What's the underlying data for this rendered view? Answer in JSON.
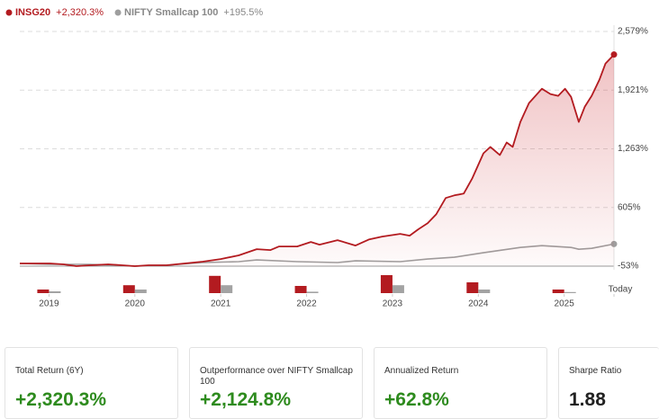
{
  "chart_data": {
    "type": "line",
    "xlim": [
      2018.66,
      2025.58
    ],
    "xticks": [
      2019,
      2020,
      2021,
      2022,
      2023,
      2024,
      2025,
      {
        "value": 2025.58,
        "label": "Today"
      }
    ],
    "ylim": [
      -53,
      2579
    ],
    "yticks": [
      {
        "value": -53,
        "label": "-53%"
      },
      {
        "value": 605,
        "label": "605%"
      },
      {
        "value": 1263,
        "label": "1,263%"
      },
      {
        "value": 1921,
        "label": "1,921%"
      },
      {
        "value": 2579,
        "label": "2,579%"
      }
    ],
    "grid": true,
    "series": [
      {
        "name": "INSG20",
        "legend_value": "+2,320.3%",
        "color": "#b31b20",
        "x": [
          2018.66,
          2018.85,
          2019.01,
          2019.17,
          2019.32,
          2019.48,
          2019.69,
          2019.85,
          2020.0,
          2020.16,
          2020.37,
          2020.58,
          2020.79,
          2021.0,
          2021.21,
          2021.42,
          2021.58,
          2021.68,
          2021.89,
          2022.05,
          2022.15,
          2022.36,
          2022.57,
          2022.73,
          2022.88,
          2023.09,
          2023.2,
          2023.3,
          2023.41,
          2023.51,
          2023.62,
          2023.72,
          2023.83,
          2023.93,
          2024.06,
          2024.14,
          2024.25,
          2024.33,
          2024.4,
          2024.49,
          2024.59,
          2024.74,
          2024.84,
          2024.93,
          2025.01,
          2025.08,
          2025.17,
          2025.24,
          2025.32,
          2025.41,
          2025.48,
          2025.58
        ],
        "values": [
          -23,
          -23,
          -23,
          -33,
          -53,
          -43,
          -33,
          -43,
          -53,
          -43,
          -43,
          -23,
          -3,
          27,
          68,
          138,
          128,
          168,
          168,
          218,
          188,
          238,
          178,
          248,
          279,
          309,
          289,
          359,
          429,
          530,
          711,
          741,
          761,
          932,
          1213,
          1284,
          1193,
          1334,
          1284,
          1565,
          1776,
          1937,
          1877,
          1857,
          1937,
          1846,
          1565,
          1736,
          1857,
          2037,
          2218,
          2320
        ],
        "annual": [
          10,
          22,
          48,
          20,
          50,
          30,
          10
        ]
      },
      {
        "name": "NIFTY Smallcap 100",
        "legend_value": "+195.5%",
        "color": "#9e9e9e",
        "x": [
          2018.66,
          2019.01,
          2019.48,
          2020.0,
          2020.37,
          2020.79,
          2021.21,
          2021.42,
          2021.89,
          2022.36,
          2022.57,
          2023.09,
          2023.41,
          2023.72,
          2024.06,
          2024.49,
          2024.74,
          2025.08,
          2025.17,
          2025.32,
          2025.58
        ],
        "values": [
          -23,
          -33,
          -33,
          -53,
          -43,
          -13,
          -3,
          17,
          -3,
          -13,
          7,
          -3,
          27,
          47,
          97,
          157,
          177,
          157,
          137,
          147,
          195.5
        ],
        "annual": [
          5,
          10,
          22,
          4,
          22,
          10,
          3
        ]
      }
    ]
  },
  "cards": [
    {
      "label": "Total Return (6Y)",
      "value": "+2,320.3%"
    },
    {
      "label": "Outperformance over NIFTY Smallcap 100",
      "value": "+2,124.8%"
    },
    {
      "label": "Annualized Return",
      "value": "+62.8%"
    },
    {
      "label": "Sharpe Ratio",
      "value": "1.88"
    }
  ]
}
